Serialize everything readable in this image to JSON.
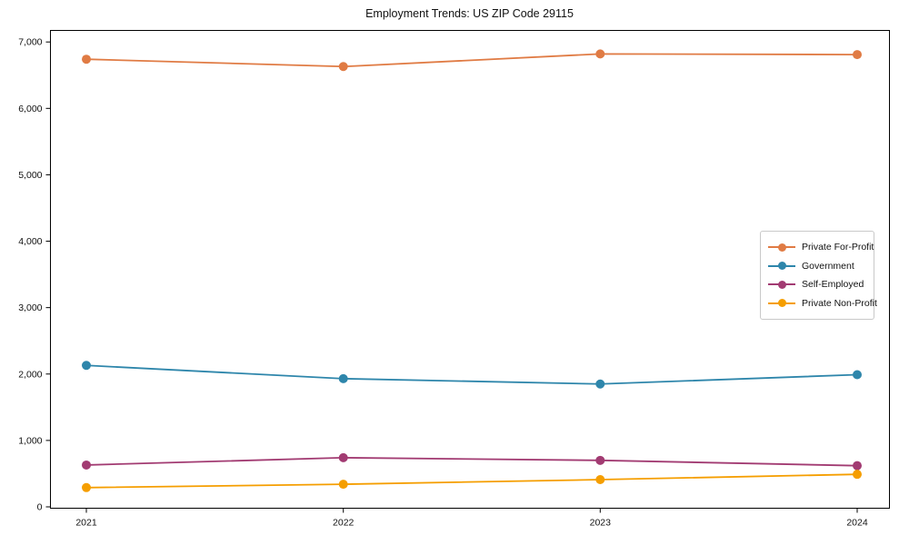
{
  "chart_data": {
    "type": "line",
    "title": "Employment Trends: US ZIP Code 29115",
    "xlabel": "",
    "ylabel": "",
    "categories": [
      "2021",
      "2022",
      "2023",
      "2024"
    ],
    "series": [
      {
        "name": "Private For-Profit",
        "color": "#e07b44",
        "values": [
          6740,
          6630,
          6820,
          6810
        ]
      },
      {
        "name": "Government",
        "color": "#2e86ab",
        "values": [
          2130,
          1930,
          1850,
          1990
        ]
      },
      {
        "name": "Self-Employed",
        "color": "#a23b72",
        "values": [
          630,
          740,
          700,
          620
        ]
      },
      {
        "name": "Private Non-Profit",
        "color": "#f59e00",
        "values": [
          290,
          340,
          410,
          490
        ]
      }
    ],
    "ylim": [
      0,
      7200
    ],
    "y_ticks": [
      0,
      1000,
      2000,
      3000,
      4000,
      5000,
      6000,
      7000
    ],
    "y_tick_labels": [
      "0",
      "1,000",
      "2,000",
      "3,000",
      "4,000",
      "5,000",
      "6,000",
      "7,000"
    ],
    "grid": false,
    "legend_position": "center-right",
    "axis_color": "#000000",
    "background_color": "#ffffff"
  }
}
